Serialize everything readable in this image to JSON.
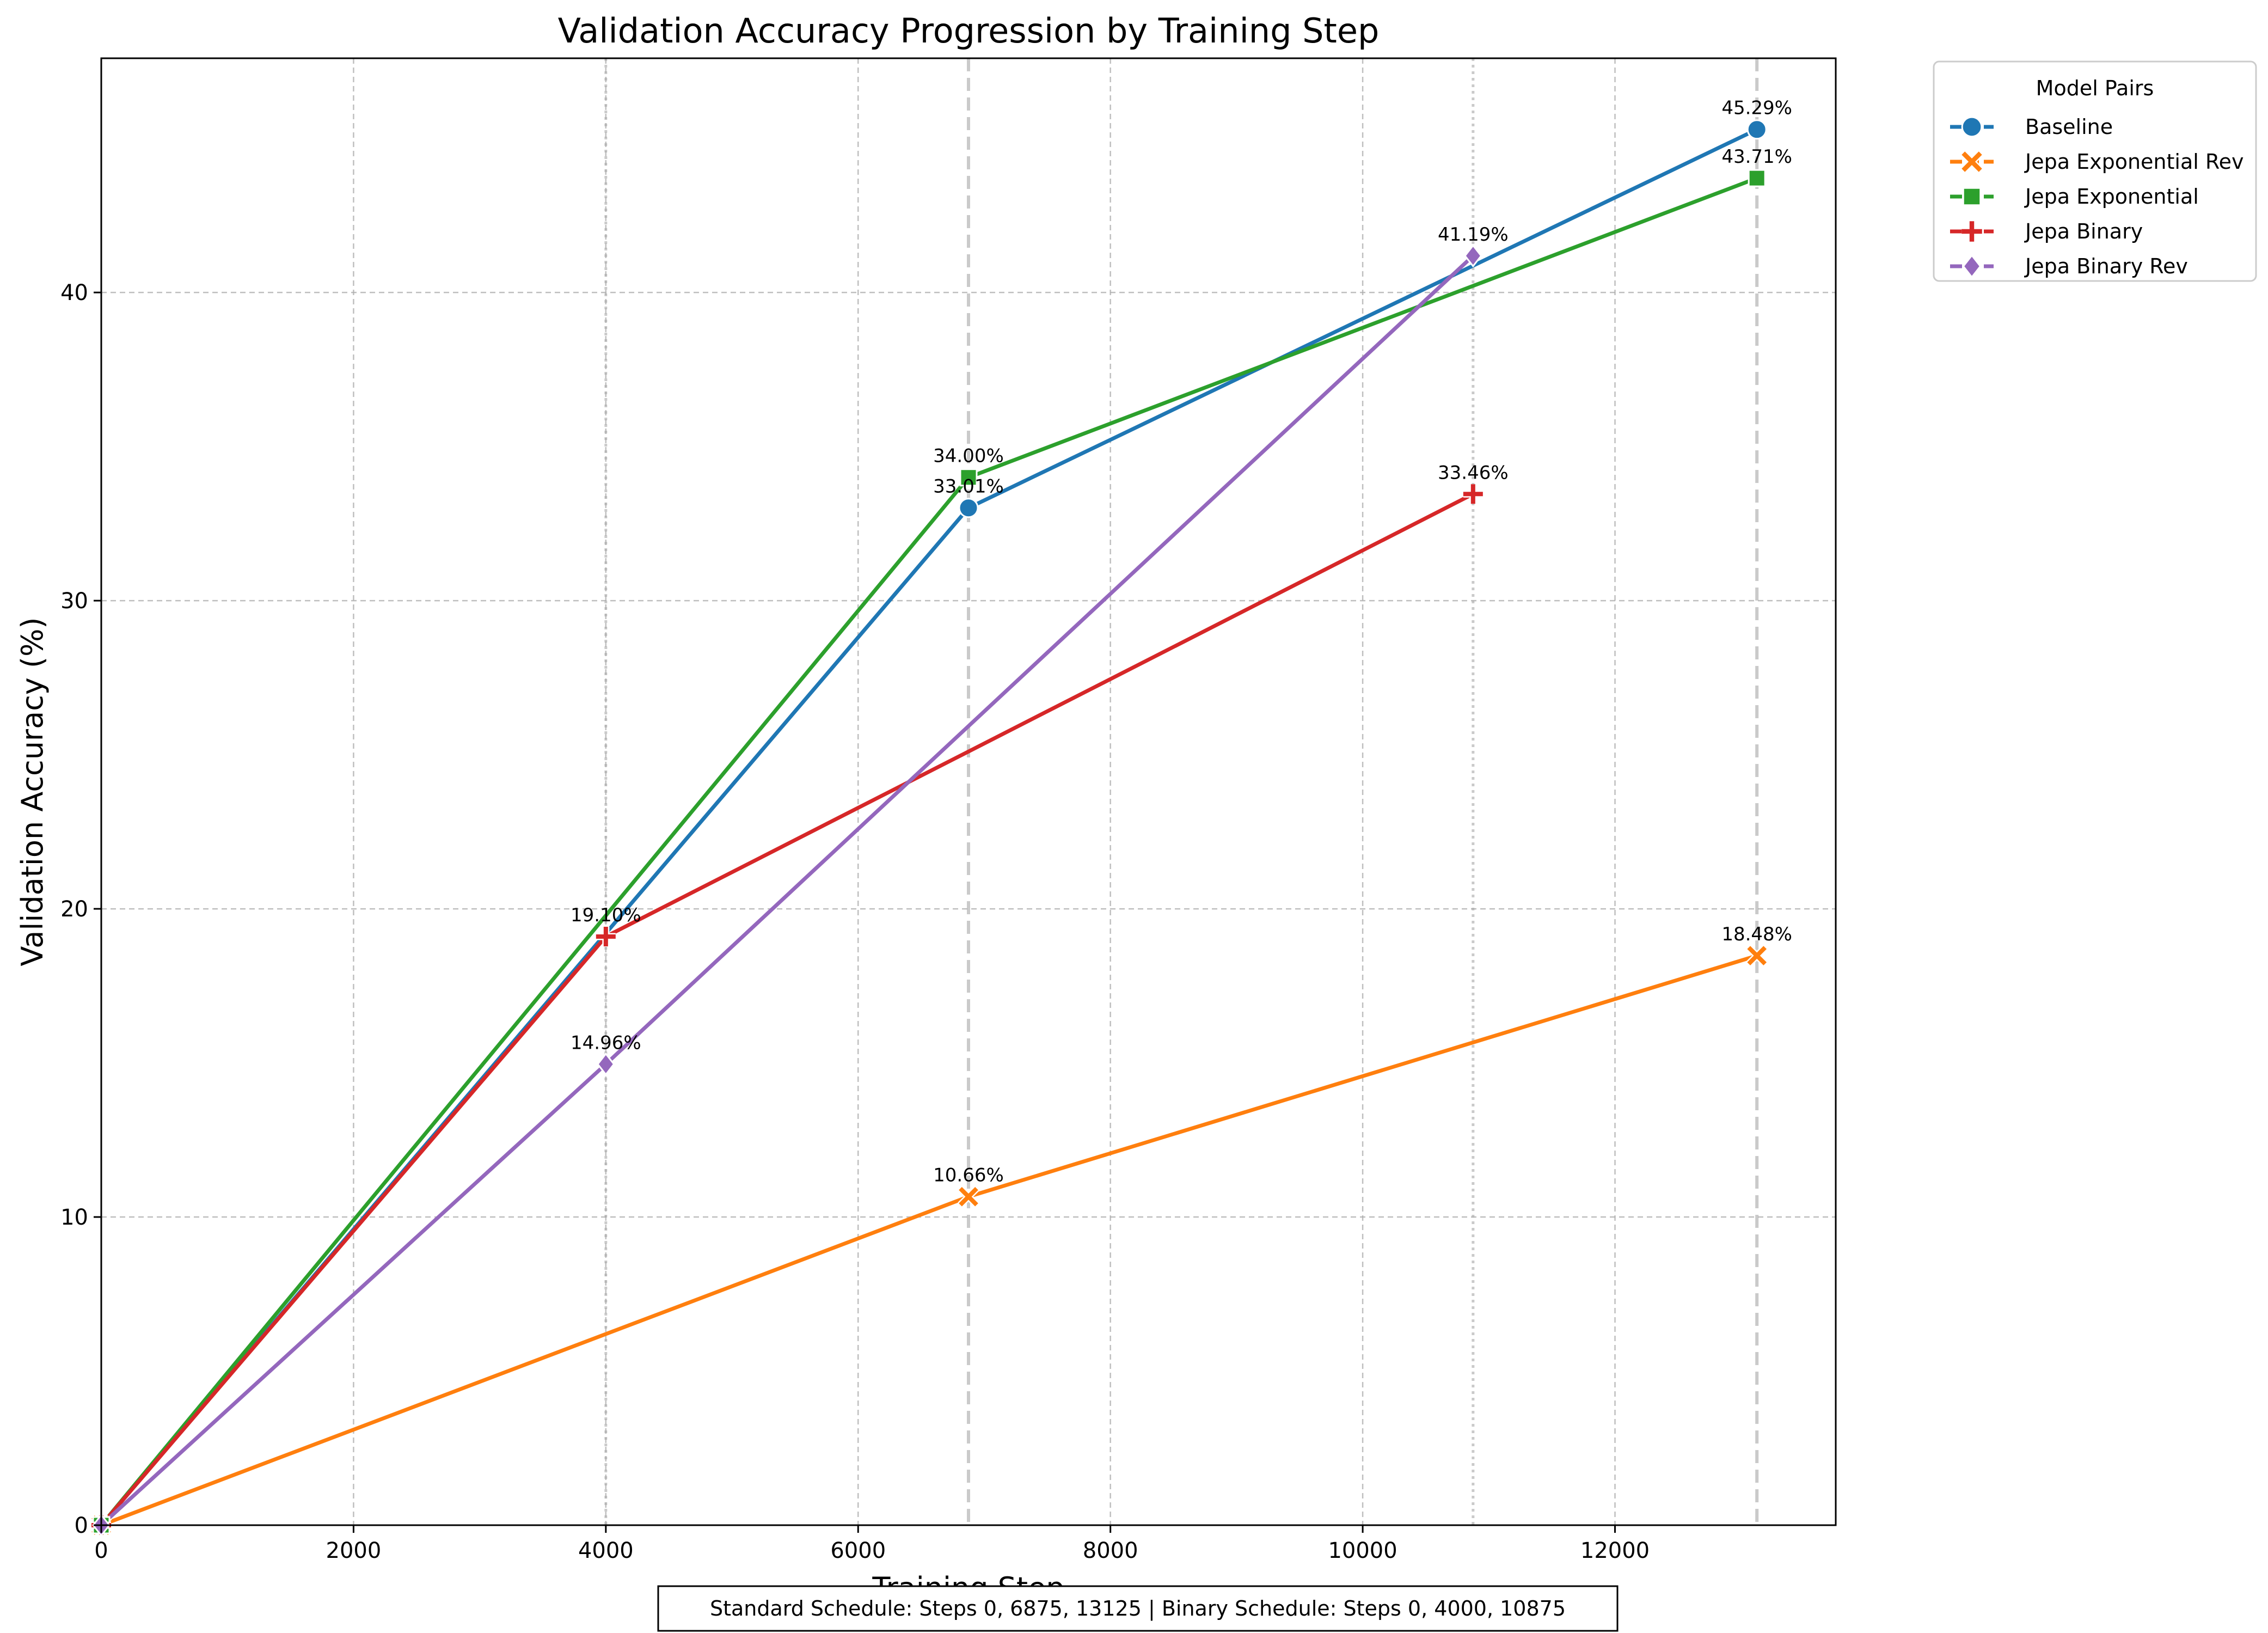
{
  "chart_data": {
    "type": "line",
    "title": "Validation Accuracy Progression by Training Step",
    "xlabel": "Training Step",
    "ylabel": "Validation Accuracy (%)",
    "xlim": [
      0,
      13750
    ],
    "ylim": [
      0,
      47.6
    ],
    "x_ticks": [
      0,
      2000,
      4000,
      6000,
      8000,
      10000,
      12000
    ],
    "y_ticks": [
      0,
      10,
      20,
      30,
      40
    ],
    "grid": true,
    "schedule_lines": [
      {
        "x": 4000,
        "style": "dotted"
      },
      {
        "x": 6875,
        "style": "dashed"
      },
      {
        "x": 10875,
        "style": "dotted"
      },
      {
        "x": 13125,
        "style": "dashed"
      }
    ],
    "legend": {
      "title": "Model Pairs",
      "placement": "outside-top-right"
    },
    "series": [
      {
        "name": "Baseline",
        "color": "#1f77b4",
        "marker": "circle",
        "x": [
          0,
          6875,
          13125
        ],
        "y": [
          0,
          33.01,
          45.29
        ],
        "labels": [
          "",
          "33.01%",
          "45.29%"
        ]
      },
      {
        "name": "Jepa Exponential Rev",
        "color": "#ff7f0e",
        "marker": "x",
        "x": [
          0,
          6875,
          13125
        ],
        "y": [
          0,
          10.66,
          18.48
        ],
        "labels": [
          "",
          "10.66%",
          "18.48%"
        ]
      },
      {
        "name": "Jepa Exponential",
        "color": "#2ca02c",
        "marker": "square",
        "x": [
          0,
          6875,
          13125
        ],
        "y": [
          0,
          34.0,
          43.71
        ],
        "labels": [
          "",
          "34.00%",
          "43.71%"
        ]
      },
      {
        "name": "Jepa Binary",
        "color": "#d62728",
        "marker": "plus",
        "x": [
          0,
          4000,
          10875
        ],
        "y": [
          0,
          19.1,
          33.46
        ],
        "labels": [
          "",
          "19.10%",
          "33.46%"
        ]
      },
      {
        "name": "Jepa Binary Rev",
        "color": "#9467bd",
        "marker": "diamond",
        "x": [
          0,
          4000,
          10875
        ],
        "y": [
          0,
          14.96,
          41.19
        ],
        "labels": [
          "",
          "14.96%",
          "41.19%"
        ]
      }
    ],
    "footnote": "Standard Schedule: Steps 0, 6875, 13125 | Binary Schedule: Steps 0, 4000, 10875"
  }
}
